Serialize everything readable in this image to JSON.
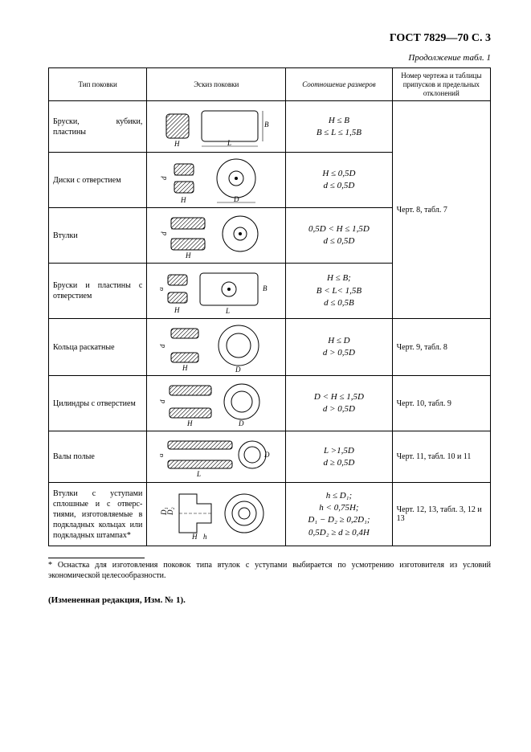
{
  "header": {
    "id": "ГОСТ 7829—70 С. 3",
    "continuation": "Продолжение табл. 1"
  },
  "columns": {
    "type": "Тип поковки",
    "sketch": "Эскиз поковки",
    "relation": "Соотношение размеров",
    "reference": "Номер чертежа и таблицы припусков и предельных отклонений"
  },
  "rows": [
    {
      "type": "Бруски, кубики, пластины",
      "relation": "H ≤ B\nB ≤ L ≤ 1,5B",
      "sketch": "bar-cube"
    },
    {
      "type": "Диски с отверстием",
      "relation": "H ≤ 0,5D\nd ≤ 0,5D",
      "sketch": "disk-hole"
    },
    {
      "type": "Втулки",
      "relation": "0,5D < H ≤ 1,5D\nd ≤ 0,5D",
      "sketch": "bushing"
    },
    {
      "type": "Бруски и пласти­ны с отверстием",
      "relation": "H ≤ B;\nB < L< 1,5B\nd ≤ 0,5B",
      "sketch": "bar-hole"
    }
  ],
  "ref_group1": "Черт. 8, табл. 7",
  "rows2": [
    {
      "type": "Кольца раскатные",
      "relation": "H ≤ D\nd > 0,5D",
      "reference": "Черт. 9, табл. 8",
      "sketch": "ring"
    },
    {
      "type": "Цилиндры с от­верстием",
      "relation": "D < H ≤ 1,5D\nd > 0,5D",
      "reference": "Черт. 10, табл. 9",
      "sketch": "cylinder-hole"
    },
    {
      "type": "Валы полые",
      "relation": "L >1,5D\nd ≥ 0,5D",
      "reference": "Черт. 11, табл. 10 и 11",
      "sketch": "hollow-shaft"
    },
    {
      "type": "Втулки с уступами сплошные и с отверс­тиями, изготовляе­мые в подкладных кольцах или подклад­ных штампах*",
      "relation": "h ≤ D₁;\nh < 0,75H;\nD₁ − D₂ ≥ 0,2D₁;\n0,5D₂ ≥ d ≥ 0,4H",
      "reference": "Черт. 12, 13, табл. 3, 12 и 13",
      "sketch": "stepped-bushing"
    }
  ],
  "footnote": "* Оснастка для изготовления поковок типа втулок с уступами выбирается по усмотрению изготовителя из условий экономической целесообразности.",
  "edition_note": "(Измененная редакция, Изм. № 1)."
}
